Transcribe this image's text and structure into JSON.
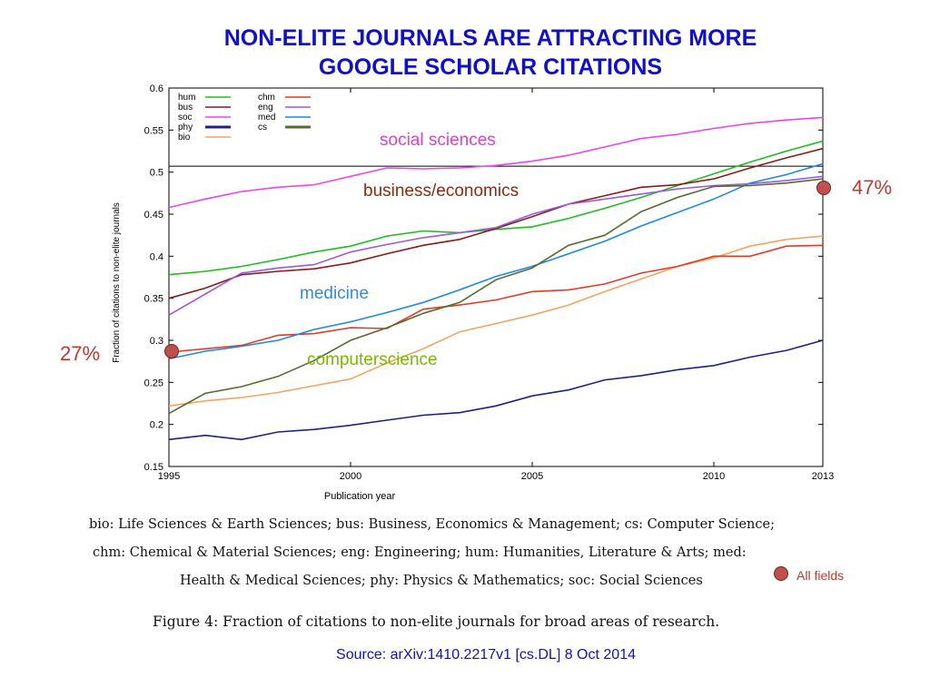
{
  "title_lines": [
    "NON-ELITE JOURNALS ARE ATTRACTING MORE",
    "GOOGLE SCHOLAR CITATIONS"
  ],
  "annotations": {
    "social_sciences": "social sciences",
    "business": "business/economics",
    "medicine": "medicine",
    "computerscience": "computerscience",
    "pct_end": "47%",
    "pct_start": "27%",
    "all_fields": "All fields"
  },
  "annotation_colors": {
    "social_sciences": "#e040c8",
    "business": "#8b2b10",
    "medicine": "#2f8ae0",
    "computerscience": "#7ab800",
    "pct": "#c0392b"
  },
  "caption_lines": [
    "bio: Life Sciences & Earth Sciences; bus: Business, Economics & Management; cs: Computer Science;",
    "chm: Chemical & Material Sciences; eng: Engineering; hum: Humanities, Literature & Arts; med:",
    "Health & Medical Sciences; phy: Physics & Mathematics; soc: Social Sciences"
  ],
  "figure_caption": "Figure 4: Fraction of citations to non-elite journals for broad areas of research.",
  "source": "Source: arXiv:1410.2217v1 [cs.DL] 8 Oct 2014",
  "chart_data": {
    "type": "line",
    "title": "",
    "xlabel": "Publication year",
    "ylabel": "Fraction of citations to non-elite journals",
    "xlim": [
      1995,
      2013
    ],
    "ylim": [
      0.15,
      0.6
    ],
    "xticks": [
      1995,
      2000,
      2005,
      2010,
      2013
    ],
    "yticks": [
      0.15,
      0.2,
      0.25,
      0.3,
      0.35,
      0.4,
      0.45,
      0.5,
      0.55,
      0.6
    ],
    "ytick_labels": [
      "0.15",
      "0.2",
      "0.25",
      "0.3",
      "0.35",
      "0.4",
      "0.45",
      "0.5",
      "0.55",
      "0.6"
    ],
    "reference_line_y": 0.507,
    "legend_placement": "top-left",
    "x": [
      1995,
      1996,
      1997,
      1998,
      1999,
      2000,
      2001,
      2002,
      2003,
      2004,
      2005,
      2006,
      2007,
      2008,
      2009,
      2010,
      2011,
      2012,
      2013
    ],
    "series": [
      {
        "name": "hum",
        "color": "#22bb22",
        "values": [
          0.378,
          0.382,
          0.388,
          0.396,
          0.405,
          0.412,
          0.424,
          0.43,
          0.428,
          0.432,
          0.435,
          0.445,
          0.457,
          0.47,
          0.484,
          0.498,
          0.512,
          0.525,
          0.537
        ]
      },
      {
        "name": "bus",
        "color": "#8b1a1a",
        "values": [
          0.35,
          0.362,
          0.378,
          0.382,
          0.385,
          0.392,
          0.403,
          0.413,
          0.42,
          0.433,
          0.447,
          0.462,
          0.472,
          0.482,
          0.485,
          0.492,
          0.505,
          0.517,
          0.528
        ]
      },
      {
        "name": "soc",
        "color": "#ee44ee",
        "values": [
          0.458,
          0.468,
          0.477,
          0.482,
          0.485,
          0.495,
          0.505,
          0.504,
          0.505,
          0.508,
          0.513,
          0.52,
          0.53,
          0.54,
          0.545,
          0.552,
          0.558,
          0.562,
          0.565
        ]
      },
      {
        "name": "phy",
        "color": "#1a237e",
        "values": [
          0.182,
          0.187,
          0.182,
          0.191,
          0.194,
          0.199,
          0.205,
          0.211,
          0.214,
          0.222,
          0.234,
          0.241,
          0.253,
          0.258,
          0.265,
          0.27,
          0.28,
          0.288,
          0.3
        ]
      },
      {
        "name": "bio",
        "color": "#f4a460",
        "values": [
          0.222,
          0.228,
          0.232,
          0.238,
          0.246,
          0.254,
          0.273,
          0.29,
          0.31,
          0.32,
          0.33,
          0.342,
          0.358,
          0.373,
          0.388,
          0.398,
          0.412,
          0.42,
          0.424
        ]
      },
      {
        "name": "chm",
        "color": "#e03c28",
        "values": [
          0.286,
          0.29,
          0.294,
          0.306,
          0.308,
          0.315,
          0.314,
          0.337,
          0.342,
          0.348,
          0.358,
          0.36,
          0.367,
          0.38,
          0.388,
          0.4,
          0.4,
          0.412,
          0.413
        ]
      },
      {
        "name": "eng",
        "color": "#9b59e0",
        "values": [
          0.33,
          0.355,
          0.38,
          0.386,
          0.39,
          0.405,
          0.414,
          0.422,
          0.428,
          0.434,
          0.45,
          0.462,
          0.468,
          0.474,
          0.48,
          0.484,
          0.486,
          0.49,
          0.495
        ]
      },
      {
        "name": "med",
        "color": "#1e88e5",
        "values": [
          0.278,
          0.287,
          0.293,
          0.3,
          0.313,
          0.322,
          0.333,
          0.345,
          0.36,
          0.376,
          0.388,
          0.403,
          0.418,
          0.436,
          0.452,
          0.468,
          0.487,
          0.497,
          0.51
        ]
      },
      {
        "name": "cs",
        "color": "#556b2f",
        "values": [
          0.213,
          0.237,
          0.245,
          0.257,
          0.276,
          0.3,
          0.315,
          0.332,
          0.345,
          0.372,
          0.386,
          0.413,
          0.425,
          0.453,
          0.47,
          0.483,
          0.484,
          0.487,
          0.492
        ]
      }
    ]
  }
}
